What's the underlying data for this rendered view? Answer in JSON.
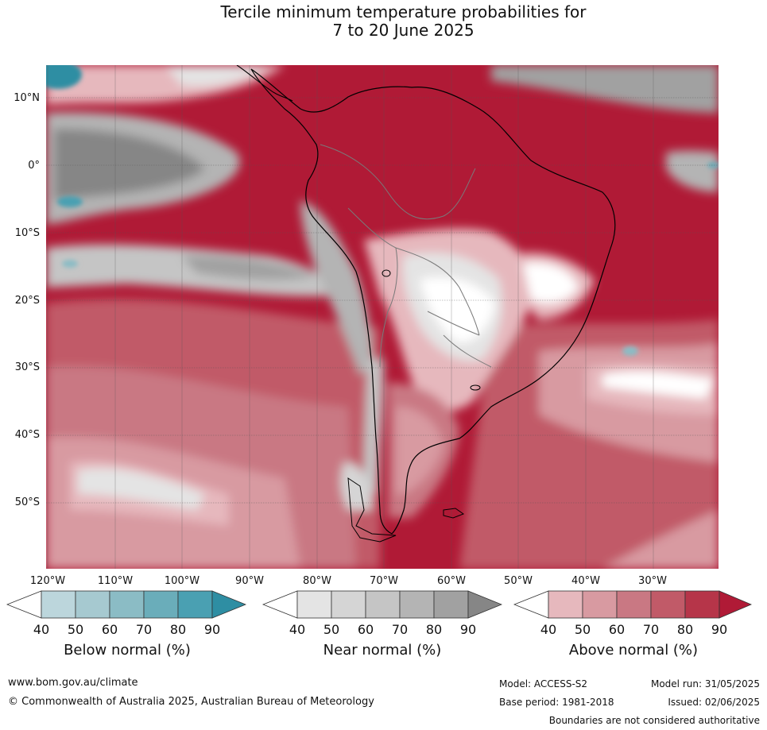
{
  "title_line1": "Tercile minimum temperature probabilities for",
  "title_line2": "7 to 20 June 2025",
  "lat_labels": [
    "10°N",
    "0°",
    "10°S",
    "20°S",
    "30°S",
    "40°S",
    "50°S"
  ],
  "lon_labels": [
    "120°W",
    "110°W",
    "100°W",
    "90°W",
    "80°W",
    "70°W",
    "60°W",
    "50°W",
    "40°W",
    "30°W"
  ],
  "colorbars": [
    {
      "title": "Below normal (%)",
      "ticks": [
        "40",
        "50",
        "60",
        "70",
        "80",
        "90"
      ],
      "colors": [
        "#ffffff",
        "#bcd6dc",
        "#a6c9d0",
        "#8bbcc5",
        "#6aadba",
        "#4aa0b2",
        "#2e8ea3"
      ]
    },
    {
      "title": "Near normal (%)",
      "ticks": [
        "40",
        "50",
        "60",
        "70",
        "80",
        "90"
      ],
      "colors": [
        "#ffffff",
        "#e4e4e4",
        "#d5d5d5",
        "#c5c5c5",
        "#b4b4b4",
        "#a1a1a1",
        "#868686"
      ]
    },
    {
      "title": "Above normal (%)",
      "ticks": [
        "40",
        "50",
        "60",
        "70",
        "80",
        "90"
      ],
      "colors": [
        "#ffffff",
        "#e6b8bd",
        "#d89aa1",
        "#c97883",
        "#c15a68",
        "#b63549",
        "#b01a36"
      ]
    }
  ],
  "footer": {
    "url": "www.bom.gov.au/climate",
    "copyright": "© Commonwealth of Australia 2025, Australian Bureau of Meteorology",
    "model": "Model: ACCESS-S2",
    "base_period": "Base period: 1981-2018",
    "model_run": "Model run: 31/05/2025",
    "issued": "Issued: 02/06/2025",
    "disclaimer": "Boundaries are not considered authoritative"
  },
  "map": {
    "ocean_color": "#b01a36",
    "land_outline_color": "#000000",
    "border_color": "#7a7a7a",
    "grid_color": "#555555"
  }
}
